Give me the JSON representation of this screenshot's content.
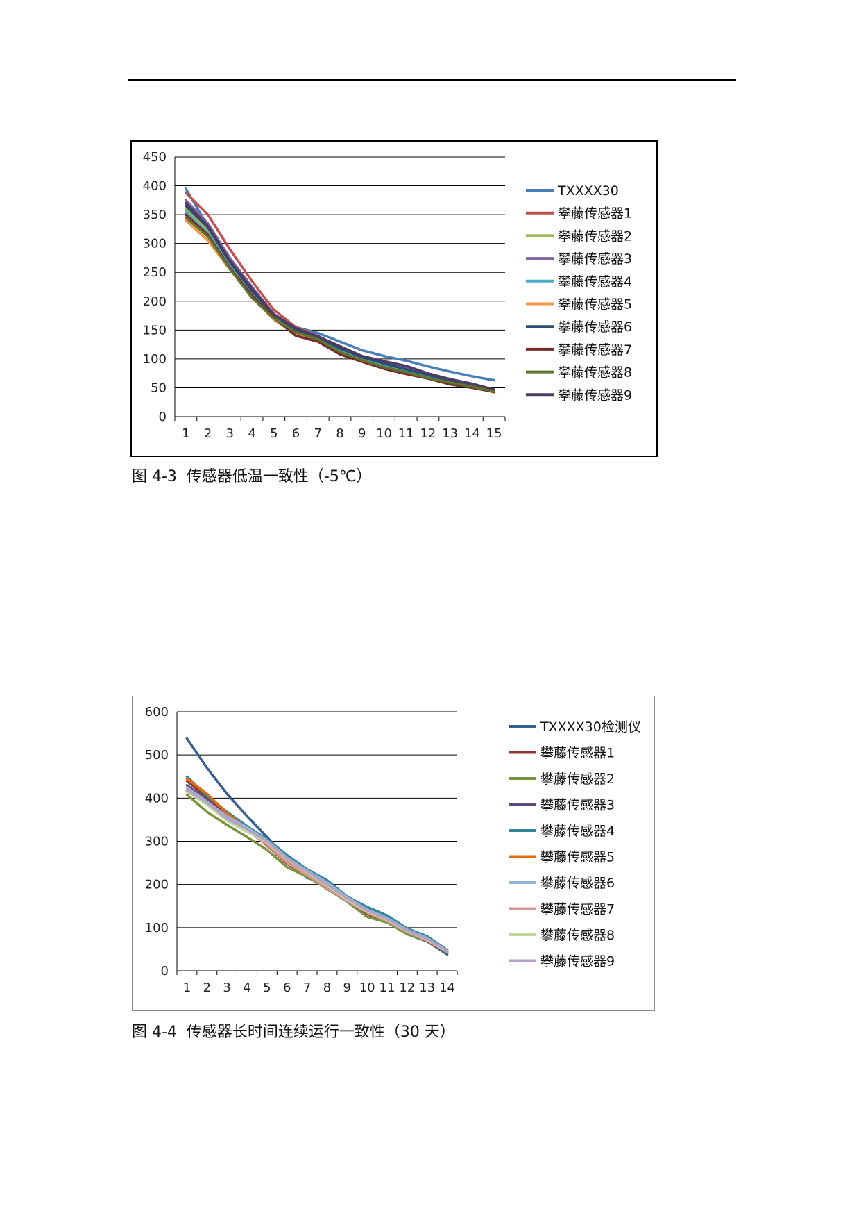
{
  "charts": [
    {
      "caption": "图 4-3  传感器低温一致性（-5℃）",
      "chart_data": {
        "type": "line",
        "x": [
          "1",
          "2",
          "3",
          "4",
          "5",
          "6",
          "7",
          "8",
          "9",
          "10",
          "11",
          "12",
          "13",
          "14",
          "15"
        ],
        "ylim": [
          0,
          450
        ],
        "yticks": [
          0,
          50,
          100,
          150,
          200,
          250,
          300,
          350,
          400,
          450
        ],
        "grid": true,
        "legend_position": "right",
        "series": [
          {
            "name": "TXXXX30",
            "color": "#4a7eb8",
            "values": [
              395,
              330,
              255,
              218,
              175,
              155,
              145,
              130,
              115,
              105,
              97,
              87,
              78,
              70,
              63
            ]
          },
          {
            "name": "攀藤传感器1",
            "color": "#c0504d",
            "values": [
              388,
              350,
              290,
              235,
              185,
              155,
              140,
              115,
              100,
              87,
              80,
              70,
              58,
              50,
              44
            ]
          },
          {
            "name": "攀藤传感器2",
            "color": "#9bbb59",
            "values": [
              360,
              322,
              265,
              215,
              175,
              145,
              135,
              110,
              97,
              88,
              77,
              68,
              60,
              54,
              45
            ]
          },
          {
            "name": "攀藤传感器3",
            "color": "#8064a2",
            "values": [
              375,
              335,
              275,
              225,
              178,
              152,
              140,
              120,
              104,
              95,
              85,
              74,
              64,
              56,
              47
            ]
          },
          {
            "name": "攀藤传感器4",
            "color": "#4bacc6",
            "values": [
              355,
              318,
              262,
              212,
              170,
              147,
              135,
              115,
              100,
              88,
              78,
              70,
              60,
              54,
              45
            ]
          },
          {
            "name": "攀藤传感器5",
            "color": "#f79646",
            "values": [
              340,
              305,
              255,
              208,
              168,
              143,
              132,
              110,
              96,
              85,
              76,
              66,
              58,
              51,
              42
            ]
          },
          {
            "name": "攀藤传感器6",
            "color": "#2c4d75",
            "values": [
              365,
              328,
              268,
              218,
              176,
              150,
              138,
              118,
              103,
              92,
              82,
              72,
              62,
              55,
              46
            ]
          },
          {
            "name": "攀藤传感器7",
            "color": "#772c2a",
            "values": [
              350,
              315,
              258,
              210,
              171,
              140,
              130,
              108,
              95,
              83,
              74,
              66,
              56,
              50,
              43
            ]
          },
          {
            "name": "攀藤传感器8",
            "color": "#5f7530",
            "values": [
              345,
              312,
              256,
              206,
              170,
              146,
              134,
              112,
              98,
              86,
              77,
              67,
              59,
              52,
              44
            ]
          },
          {
            "name": "攀藤传感器9",
            "color": "#4d3b62",
            "values": [
              370,
              330,
              270,
              222,
              177,
              153,
              139,
              122,
              105,
              96,
              88,
              75,
              65,
              57,
              47
            ]
          }
        ]
      }
    },
    {
      "caption": "图 4-4  传感器长时间连续运行一致性（30 天）",
      "chart_data": {
        "type": "line",
        "x": [
          "1",
          "2",
          "3",
          "4",
          "5",
          "6",
          "7",
          "8",
          "9",
          "10",
          "11",
          "12",
          "13",
          "14"
        ],
        "ylim": [
          0,
          600
        ],
        "yticks": [
          0,
          100,
          200,
          300,
          400,
          500,
          600
        ],
        "grid": true,
        "legend_position": "right",
        "series": [
          {
            "name": "TXXXX30检测仪",
            "color": "#376092",
            "values": [
              538,
              470,
              410,
              358,
              310,
              258,
              215,
              205,
              165,
              135,
              115,
              85,
              68,
              38
            ]
          },
          {
            "name": "攀藤传感器1",
            "color": "#953735",
            "values": [
              440,
              400,
              360,
              330,
              290,
              248,
              220,
              190,
              162,
              132,
              112,
              88,
              68,
              42
            ]
          },
          {
            "name": "攀藤传感器2",
            "color": "#77933c",
            "values": [
              408,
              368,
              338,
              310,
              280,
              240,
              218,
              190,
              160,
              125,
              112,
              85,
              70,
              42
            ]
          },
          {
            "name": "攀藤传感器3",
            "color": "#604a7b",
            "values": [
              430,
              395,
              355,
              328,
              300,
              260,
              228,
              196,
              165,
              138,
              118,
              90,
              70,
              44
            ]
          },
          {
            "name": "攀藤传感器4",
            "color": "#31859c",
            "values": [
              450,
              405,
              368,
              335,
              305,
              268,
              235,
              210,
              172,
              148,
              128,
              98,
              80,
              48
            ]
          },
          {
            "name": "攀藤传感器5",
            "color": "#e46c0a",
            "values": [
              445,
              410,
              365,
              330,
              295,
              255,
              225,
              198,
              165,
              140,
              120,
              92,
              72,
              44
            ]
          },
          {
            "name": "攀藤传感器6",
            "color": "#95b3d7",
            "values": [
              425,
              392,
              358,
              332,
              302,
              262,
              232,
              205,
              170,
              142,
              122,
              95,
              76,
              46
            ]
          },
          {
            "name": "攀藤传感器7",
            "color": "#d99694",
            "values": [
              420,
              388,
              350,
              325,
              292,
              250,
              222,
              192,
              162,
              135,
              115,
              90,
              70,
              44
            ]
          },
          {
            "name": "攀藤传感器8",
            "color": "#c3d69b",
            "values": [
              415,
              385,
              348,
              322,
              298,
              258,
              228,
              198,
              165,
              138,
              118,
              92,
              72,
              45
            ]
          },
          {
            "name": "攀藤传感器9",
            "color": "#b3a2c7",
            "values": [
              418,
              390,
              352,
              328,
              300,
              260,
              230,
              200,
              168,
              140,
              120,
              93,
              74,
              45
            ]
          }
        ]
      }
    }
  ]
}
